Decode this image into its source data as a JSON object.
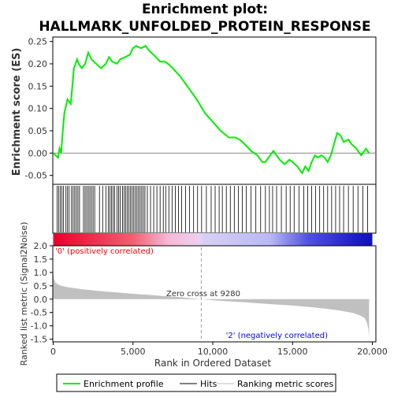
{
  "title_line1": "Enrichment plot:",
  "title_line2": "HALLMARK_UNFOLDED_PROTEIN_RESPONSE",
  "colors": {
    "enrichment_line": "#00ee00",
    "hits": "#000000",
    "metric_fill": "#c0c0c0",
    "pos_label": "#ff0000",
    "neg_label": "#0000ff",
    "zero_line": "#a0a0a0"
  },
  "chart_data": {
    "type": "line",
    "x_max": 20000,
    "es_panel": {
      "ylabel": "Enrichment score (ES)",
      "ylim": [
        -0.07,
        0.26
      ],
      "yticks": [
        -0.05,
        0.0,
        0.05,
        0.1,
        0.15,
        0.2,
        0.25
      ],
      "ytick_labels": [
        "-0.05",
        "0.00",
        "0.05",
        "0.10",
        "0.15",
        "0.20",
        "0.25"
      ],
      "series": [
        {
          "x": [
            0,
            300,
            400,
            500,
            600,
            700,
            900,
            1100,
            1300,
            1400,
            1500,
            1600,
            1800,
            2000,
            2200,
            2400,
            2700,
            3000,
            3300,
            3500,
            3700,
            4000,
            4200,
            4500,
            4800,
            5000,
            5200,
            5500,
            5800,
            6000,
            6300,
            6700,
            7000,
            7200,
            7500,
            8000,
            8500,
            9000,
            9500,
            10000,
            10500,
            11000,
            11400,
            11700,
            12000,
            12400,
            12800,
            13100,
            13300,
            13500,
            13800,
            14000,
            14200,
            14500,
            14800,
            15000,
            15300,
            15600,
            15800,
            16000,
            16200,
            16400,
            16600,
            16800,
            17000,
            17200,
            17400,
            17600,
            17800,
            18000,
            18200,
            18500,
            18700,
            19000,
            19300,
            19600,
            19800
          ],
          "y": [
            0.0,
            -0.01,
            0.01,
            0.0,
            0.05,
            0.09,
            0.12,
            0.11,
            0.19,
            0.2,
            0.21,
            0.2,
            0.19,
            0.2,
            0.225,
            0.21,
            0.2,
            0.19,
            0.2,
            0.215,
            0.205,
            0.2,
            0.21,
            0.215,
            0.22,
            0.235,
            0.24,
            0.235,
            0.24,
            0.23,
            0.22,
            0.205,
            0.205,
            0.2,
            0.19,
            0.17,
            0.145,
            0.12,
            0.09,
            0.07,
            0.05,
            0.035,
            0.035,
            0.03,
            0.02,
            0.005,
            -0.005,
            -0.02,
            -0.02,
            -0.01,
            0.005,
            -0.005,
            -0.015,
            -0.025,
            -0.015,
            -0.02,
            -0.03,
            -0.045,
            -0.03,
            -0.04,
            -0.02,
            -0.005,
            -0.01,
            -0.005,
            -0.01,
            -0.02,
            -0.005,
            0.02,
            0.045,
            0.04,
            0.025,
            0.03,
            0.02,
            0.01,
            -0.005,
            0.01,
            0.0
          ]
        }
      ]
    },
    "hits_panel": {
      "hits": [
        250,
        350,
        450,
        550,
        650,
        800,
        900,
        1000,
        1150,
        1250,
        1350,
        1450,
        1550,
        1650,
        1900,
        2000,
        2100,
        2200,
        2300,
        2400,
        2500,
        2600,
        2900,
        3100,
        3300,
        3450,
        3550,
        3650,
        3750,
        3850,
        4000,
        4100,
        4200,
        4350,
        4450,
        4550,
        4650,
        4750,
        4850,
        4950,
        5050,
        5150,
        5250,
        5350,
        5450,
        5550,
        5650,
        5750,
        5900,
        6100,
        6300,
        6500,
        6700,
        6900,
        7050,
        7250,
        7450,
        7650,
        7850,
        8050,
        8300,
        8550,
        8800,
        9050,
        9300,
        9600,
        9900,
        10150,
        10400,
        10600,
        10850,
        11100,
        11350,
        11600,
        11850,
        12100,
        12400,
        12700,
        13000,
        13300,
        13550,
        13750,
        14000,
        14300,
        14600,
        14850,
        15100,
        15400,
        15700,
        15950,
        16200,
        16450,
        16700,
        16950,
        17200,
        17450,
        17700,
        17950,
        18200,
        18500,
        18800,
        19100,
        19400,
        19700
      ]
    },
    "metric_panel": {
      "ylabel": "Ranked list metric (Signal2Noise)",
      "xlabel": "Rank in Ordered Dataset",
      "ylim": [
        -1.6,
        2.0
      ],
      "yticks": [
        -1.5,
        -1.0,
        -0.5,
        0.0,
        0.5,
        1.0,
        1.5,
        2.0
      ],
      "ytick_labels": [
        "-1.5",
        "-1.0",
        "-0.5",
        "0.0",
        "0.5",
        "1.0",
        "1.5",
        "2.0"
      ],
      "xticks": [
        0,
        5000,
        10000,
        15000,
        20000
      ],
      "xtick_labels": [
        "0",
        "5,000",
        "10,000",
        "15,000",
        "20,000"
      ],
      "x": [
        0,
        50,
        150,
        300,
        500,
        800,
        1200,
        2000,
        3000,
        4000,
        5000,
        6000,
        7000,
        8000,
        9280,
        10000,
        11000,
        12000,
        13000,
        14000,
        15000,
        16000,
        17000,
        18000,
        18800,
        19200,
        19500,
        19650,
        19750,
        19800
      ],
      "values": [
        1.0,
        0.75,
        0.62,
        0.55,
        0.5,
        0.46,
        0.42,
        0.36,
        0.3,
        0.25,
        0.2,
        0.16,
        0.11,
        0.07,
        0.0,
        -0.04,
        -0.08,
        -0.12,
        -0.16,
        -0.2,
        -0.24,
        -0.29,
        -0.35,
        -0.43,
        -0.52,
        -0.6,
        -0.7,
        -0.85,
        -1.1,
        -1.45
      ],
      "zero_cross_label": "Zero cross at 9280",
      "zero_cross": 9280,
      "pos_label": "'0' (positively correlated)",
      "neg_label": "'2' (negatively correlated)"
    },
    "legend": [
      "Enrichment profile",
      "Hits",
      "Ranking metric scores"
    ]
  }
}
